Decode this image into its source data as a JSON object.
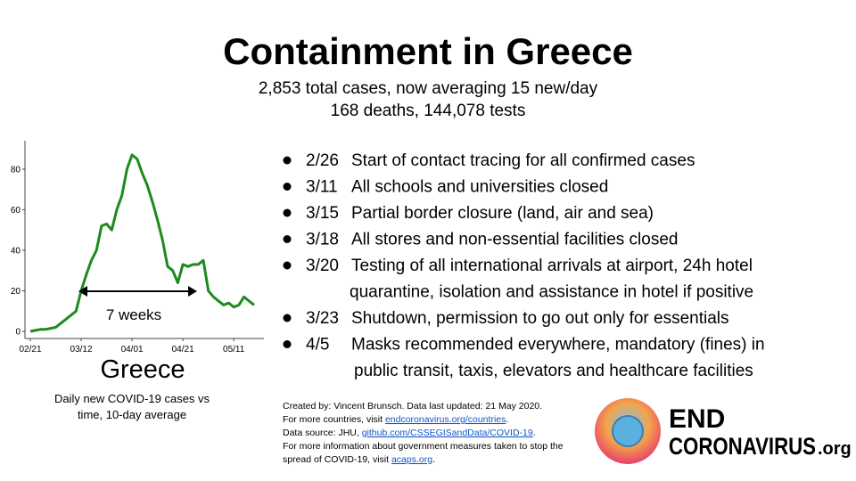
{
  "title": "Containment in Greece",
  "subtitle": [
    "2,853 total cases, now averaging 15 new/day",
    "168 deaths, 144,078 tests"
  ],
  "chart_data": {
    "type": "line",
    "label": "Greece",
    "caption": [
      "Daily new COVID-19 cases vs",
      "time, 10-day average"
    ],
    "categories": [
      "02/21",
      "02/23",
      "02/25",
      "02/27",
      "02/29",
      "03/02",
      "03/04",
      "03/06",
      "03/08",
      "03/10",
      "03/12",
      "03/14",
      "03/16",
      "03/18",
      "03/20",
      "03/22",
      "03/24",
      "03/26",
      "03/28",
      "03/30",
      "04/01",
      "04/03",
      "04/05",
      "04/07",
      "04/09",
      "04/11",
      "04/13",
      "04/15",
      "04/17",
      "04/19",
      "04/21",
      "04/23",
      "04/25",
      "04/27",
      "04/29",
      "05/01",
      "05/03",
      "05/05",
      "05/07",
      "05/09",
      "05/11",
      "05/13",
      "05/15",
      "05/17",
      "05/19"
    ],
    "values": [
      0,
      0.5,
      1,
      1,
      1.5,
      2,
      4,
      6,
      8,
      10,
      20,
      28,
      35,
      40,
      52,
      53,
      50,
      60,
      67,
      80,
      87,
      85,
      78,
      72,
      64,
      55,
      45,
      32,
      30,
      24,
      33,
      32,
      33,
      33,
      35,
      20,
      17,
      15,
      13,
      14,
      12,
      13,
      17,
      15,
      13
    ],
    "color": "#1e8a1e",
    "xticks": [
      "02/21",
      "03/12",
      "04/01",
      "04/21",
      "05/11"
    ],
    "ylim": [
      -3.5,
      94
    ],
    "yticks": [
      0,
      20,
      40,
      60,
      80
    ],
    "annotation": "7 weeks"
  },
  "events": [
    {
      "date": "2/26",
      "lines": [
        "Start of contact tracing for all confirmed cases"
      ]
    },
    {
      "date": "3/11",
      "lines": [
        "All schools and universities closed"
      ]
    },
    {
      "date": "3/15",
      "lines": [
        "Partial border closure (land, air and sea)"
      ]
    },
    {
      "date": "3/18",
      "lines": [
        "All stores and non-essential facilities closed"
      ]
    },
    {
      "date": "3/20",
      "lines": [
        "Testing of all international arrivals at airport, 24h hotel",
        "quarantine, isolation and assistance in hotel if positive"
      ]
    },
    {
      "date": "3/23",
      "lines": [
        "Shutdown, permission to go out only for essentials"
      ]
    },
    {
      "date": "4/5",
      "lines": [
        "Masks recommended everywhere, mandatory (fines) in",
        "public transit, taxis, elevators and healthcare facilities"
      ]
    }
  ],
  "footer": [
    [
      {
        "text": "Created by: Vincent Brunsch. Data last updated: 21 May 2020."
      }
    ],
    [
      {
        "text": "For more countries, visit "
      },
      {
        "text": "endcoronavirus.org/countries",
        "link": true
      },
      {
        "text": "."
      }
    ],
    [
      {
        "text": "Data source: JHU, "
      },
      {
        "text": "github.com/CSSEGISandData/COVID-19",
        "link": true
      },
      {
        "text": "."
      }
    ],
    [
      {
        "text": "For more information about government measures taken to stop the"
      }
    ],
    [
      {
        "text": "spread of COVID-19, visit "
      },
      {
        "text": "acaps.org",
        "link": true
      },
      {
        "text": "."
      }
    ]
  ],
  "logo": {
    "top": "END",
    "bottom": "CORONAVIRUS",
    "suffix": ".org"
  }
}
